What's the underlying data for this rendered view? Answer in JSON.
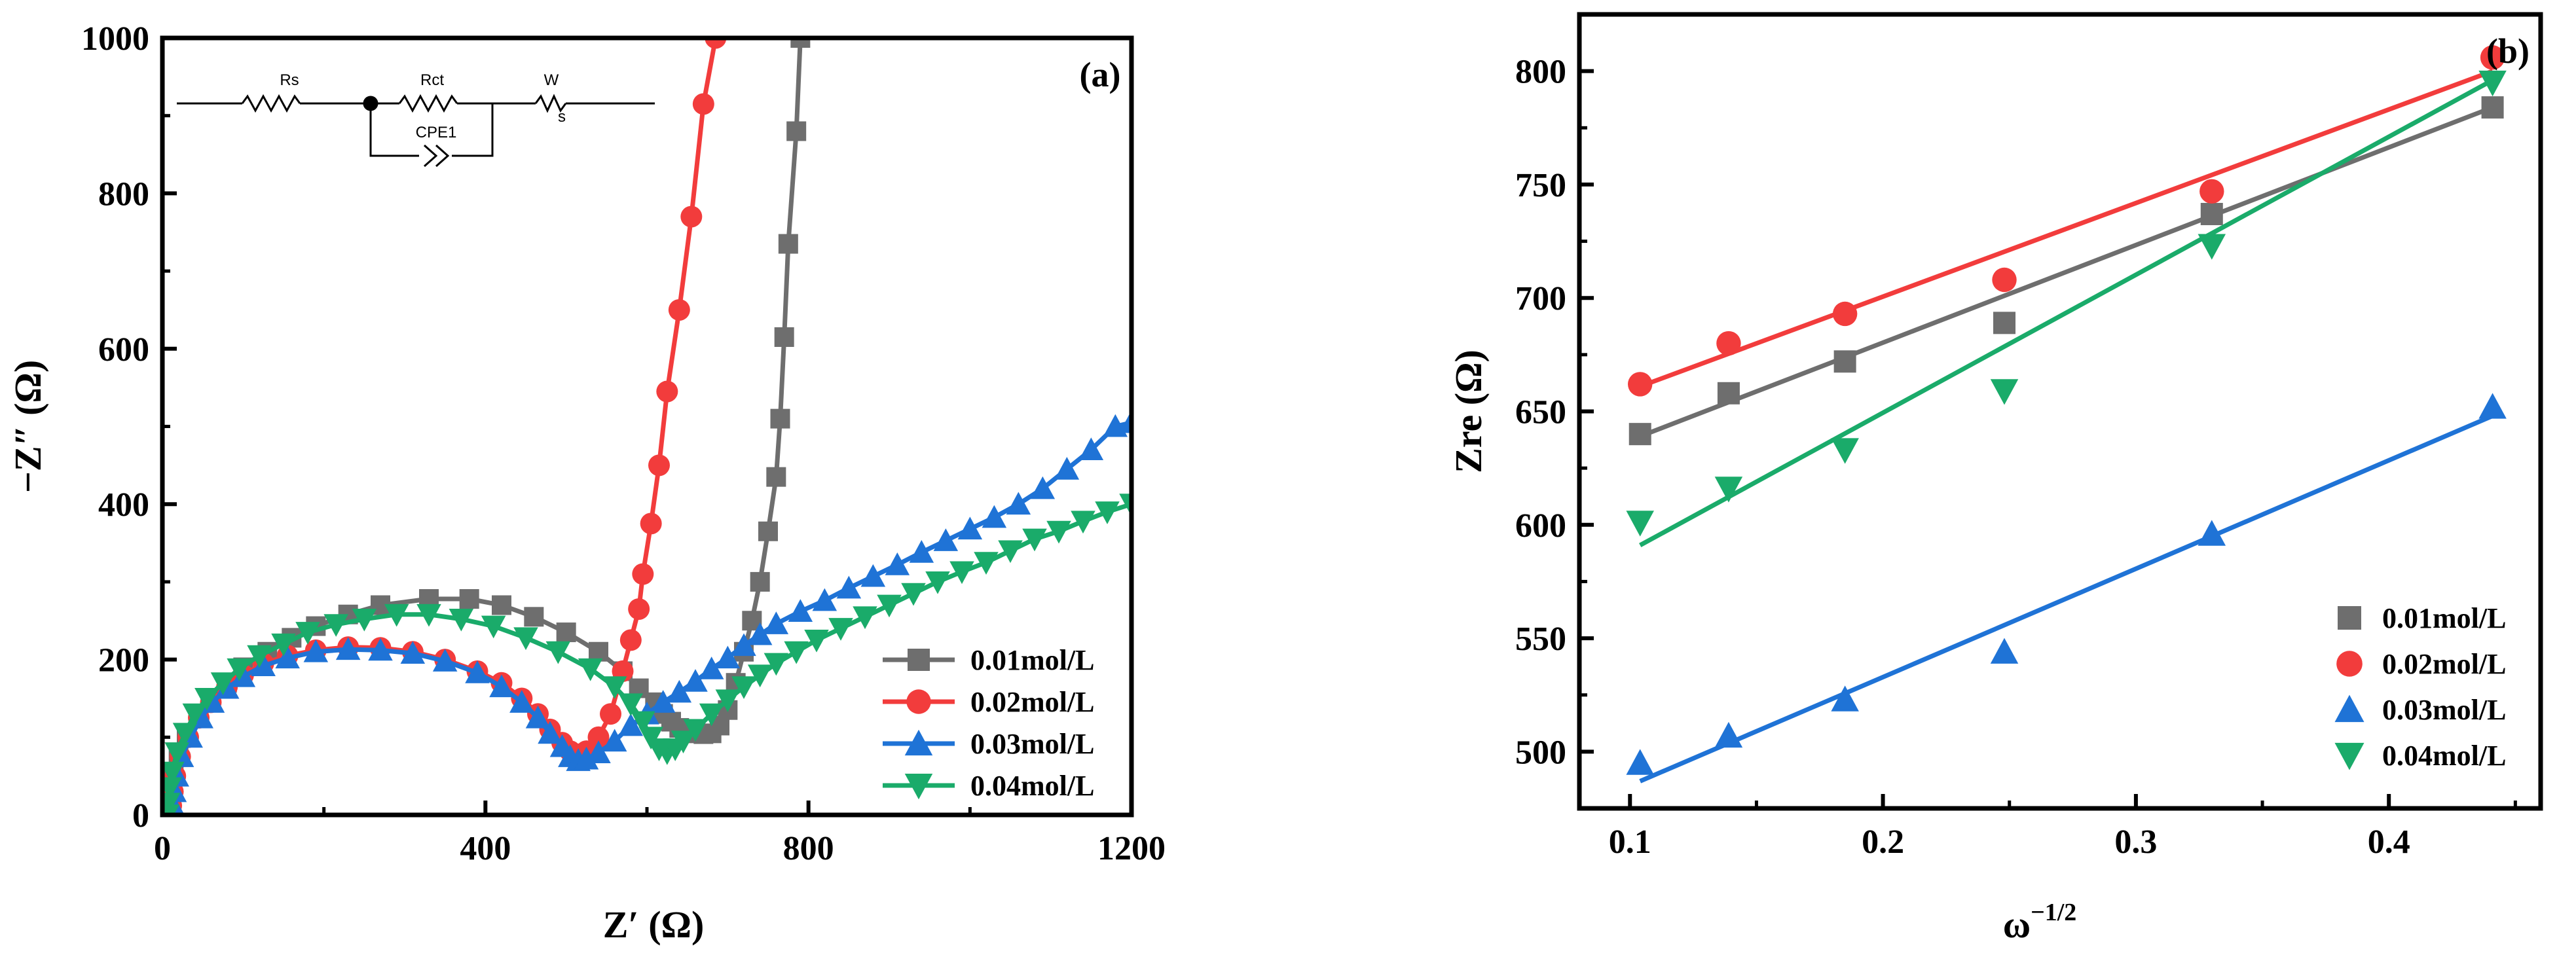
{
  "chart_data": [
    {
      "type": "scatter",
      "panel_label": "(a)",
      "xlabel": "Z′ (Ω)",
      "ylabel": "−Z″ (Ω)",
      "xlim": [
        0,
        1200
      ],
      "ylim": [
        0,
        1000
      ],
      "xticks": [
        0,
        400,
        800,
        1200
      ],
      "yticks": [
        0,
        200,
        400,
        600,
        800,
        1000
      ],
      "grid": false,
      "legend_position": "bottom-right",
      "inset_circuit": {
        "labels": [
          "Rs",
          "Rct",
          "W",
          "CPE1"
        ],
        "subscript": "s"
      },
      "series": [
        {
          "name": "0.01mol/L",
          "color": "#6e6e6e",
          "marker": "square",
          "points": [
            [
              8,
              0
            ],
            [
              9,
              15
            ],
            [
              11,
              35
            ],
            [
              14,
              55
            ],
            [
              20,
              80
            ],
            [
              30,
              105
            ],
            [
              45,
              130
            ],
            [
              60,
              150
            ],
            [
              80,
              170
            ],
            [
              100,
              190
            ],
            [
              130,
              210
            ],
            [
              160,
              228
            ],
            [
              190,
              243
            ],
            [
              230,
              258
            ],
            [
              270,
              270
            ],
            [
              330,
              278
            ],
            [
              380,
              278
            ],
            [
              420,
              270
            ],
            [
              460,
              255
            ],
            [
              500,
              235
            ],
            [
              540,
              210
            ],
            [
              570,
              185
            ],
            [
              590,
              163
            ],
            [
              610,
              145
            ],
            [
              620,
              130
            ],
            [
              630,
              120
            ],
            [
              640,
              112
            ],
            [
              650,
              108
            ],
            [
              660,
              105
            ],
            [
              670,
              104
            ],
            [
              680,
              105
            ],
            [
              690,
              115
            ],
            [
              700,
              135
            ],
            [
              710,
              170
            ],
            [
              720,
              210
            ],
            [
              730,
              250
            ],
            [
              740,
              300
            ],
            [
              750,
              365
            ],
            [
              760,
              435
            ],
            [
              765,
              510
            ],
            [
              770,
              615
            ],
            [
              775,
              735
            ],
            [
              785,
              880
            ],
            [
              790,
              1000
            ]
          ]
        },
        {
          "name": "0.02mol/L",
          "color": "#f23c3c",
          "marker": "circle",
          "points": [
            [
              10,
              0
            ],
            [
              11,
              12
            ],
            [
              13,
              30
            ],
            [
              16,
              50
            ],
            [
              22,
              75
            ],
            [
              32,
              100
            ],
            [
              45,
              125
            ],
            [
              60,
              145
            ],
            [
              80,
              165
            ],
            [
              100,
              180
            ],
            [
              125,
              195
            ],
            [
              155,
              205
            ],
            [
              190,
              212
            ],
            [
              230,
              216
            ],
            [
              270,
              215
            ],
            [
              310,
              210
            ],
            [
              350,
              200
            ],
            [
              390,
              185
            ],
            [
              420,
              170
            ],
            [
              445,
              150
            ],
            [
              465,
              130
            ],
            [
              480,
              110
            ],
            [
              495,
              93
            ],
            [
              505,
              82
            ],
            [
              515,
              78
            ],
            [
              525,
              82
            ],
            [
              540,
              100
            ],
            [
              555,
              130
            ],
            [
              570,
              185
            ],
            [
              580,
              225
            ],
            [
              590,
              265
            ],
            [
              595,
              310
            ],
            [
              605,
              375
            ],
            [
              615,
              450
            ],
            [
              625,
              545
            ],
            [
              640,
              650
            ],
            [
              655,
              770
            ],
            [
              670,
              915
            ],
            [
              685,
              1000
            ]
          ]
        },
        {
          "name": "0.03mol/L",
          "color": "#1f73d6",
          "marker": "triangle-up",
          "points": [
            [
              12,
              0
            ],
            [
              13,
              12
            ],
            [
              15,
              30
            ],
            [
              18,
              50
            ],
            [
              24,
              75
            ],
            [
              35,
              100
            ],
            [
              48,
              125
            ],
            [
              62,
              145
            ],
            [
              80,
              163
            ],
            [
              100,
              178
            ],
            [
              125,
              192
            ],
            [
              155,
              202
            ],
            [
              190,
              210
            ],
            [
              230,
              213
            ],
            [
              270,
              212
            ],
            [
              310,
              208
            ],
            [
              350,
              198
            ],
            [
              390,
              183
            ],
            [
              420,
              165
            ],
            [
              445,
              145
            ],
            [
              465,
              125
            ],
            [
              480,
              105
            ],
            [
              495,
              88
            ],
            [
              505,
              75
            ],
            [
              515,
              70
            ],
            [
              525,
              72
            ],
            [
              540,
              80
            ],
            [
              560,
              95
            ],
            [
              580,
              115
            ],
            [
              600,
              130
            ],
            [
              620,
              145
            ],
            [
              640,
              158
            ],
            [
              660,
              172
            ],
            [
              680,
              188
            ],
            [
              700,
              202
            ],
            [
              720,
              218
            ],
            [
              740,
              232
            ],
            [
              760,
              246
            ],
            [
              790,
              262
            ],
            [
              820,
              276
            ],
            [
              850,
              292
            ],
            [
              880,
              307
            ],
            [
              910,
              322
            ],
            [
              940,
              338
            ],
            [
              970,
              353
            ],
            [
              1000,
              368
            ],
            [
              1030,
              383
            ],
            [
              1060,
              400
            ],
            [
              1090,
              420
            ],
            [
              1120,
              445
            ],
            [
              1150,
              470
            ],
            [
              1180,
              500
            ],
            [
              1200,
              505
            ]
          ]
        },
        {
          "name": "0.04mol/L",
          "color": "#1aab6a",
          "marker": "triangle-down",
          "points": [
            [
              6,
              0
            ],
            [
              7,
              15
            ],
            [
              9,
              35
            ],
            [
              12,
              55
            ],
            [
              18,
              80
            ],
            [
              28,
              105
            ],
            [
              40,
              130
            ],
            [
              55,
              150
            ],
            [
              75,
              170
            ],
            [
              95,
              188
            ],
            [
              120,
              205
            ],
            [
              150,
              220
            ],
            [
              180,
              235
            ],
            [
              215,
              245
            ],
            [
              250,
              252
            ],
            [
              290,
              258
            ],
            [
              330,
              258
            ],
            [
              370,
              252
            ],
            [
              410,
              243
            ],
            [
              450,
              228
            ],
            [
              490,
              210
            ],
            [
              530,
              188
            ],
            [
              560,
              165
            ],
            [
              580,
              143
            ],
            [
              595,
              120
            ],
            [
              605,
              100
            ],
            [
              615,
              85
            ],
            [
              625,
              80
            ],
            [
              635,
              85
            ],
            [
              645,
              95
            ],
            [
              660,
              110
            ],
            [
              680,
              130
            ],
            [
              700,
              148
            ],
            [
              720,
              165
            ],
            [
              740,
              180
            ],
            [
              760,
              195
            ],
            [
              785,
              210
            ],
            [
              810,
              225
            ],
            [
              840,
              240
            ],
            [
              870,
              255
            ],
            [
              900,
              270
            ],
            [
              930,
              285
            ],
            [
              960,
              300
            ],
            [
              990,
              313
            ],
            [
              1020,
              325
            ],
            [
              1050,
              340
            ],
            [
              1080,
              355
            ],
            [
              1110,
              365
            ],
            [
              1140,
              378
            ],
            [
              1170,
              390
            ],
            [
              1200,
              400
            ]
          ]
        }
      ]
    },
    {
      "type": "scatter",
      "panel_label": "(b)",
      "xlabel": "ω",
      "xlabel_sup": "−1/2",
      "ylabel": "Zre (Ω)",
      "xlim": [
        0.08,
        0.46
      ],
      "ylim": [
        475,
        825
      ],
      "xticks": [
        0.1,
        0.2,
        0.3,
        0.4
      ],
      "yticks": [
        500,
        550,
        600,
        650,
        700,
        750,
        800
      ],
      "grid": false,
      "legend_position": "bottom-right",
      "x": [
        0.104,
        0.139,
        0.185,
        0.248,
        0.33,
        0.441
      ],
      "series": [
        {
          "name": "0.01mol/L",
          "color": "#6e6e6e",
          "marker": "square",
          "values": [
            640,
            658,
            672,
            689,
            737,
            784
          ],
          "fit": [
            0.104,
            639,
            0.441,
            784
          ]
        },
        {
          "name": "0.02mol/L",
          "color": "#f23c3c",
          "marker": "circle",
          "values": [
            662,
            680,
            693,
            708,
            747,
            806
          ],
          "fit": [
            0.104,
            661,
            0.441,
            800
          ]
        },
        {
          "name": "0.03mol/L",
          "color": "#1f73d6",
          "marker": "triangle-up",
          "values": [
            495,
            507,
            523,
            544,
            596,
            652
          ],
          "fit": [
            0.104,
            487,
            0.441,
            648
          ]
        },
        {
          "name": "0.04mol/L",
          "color": "#1aab6a",
          "marker": "triangle-down",
          "values": [
            601,
            616,
            633,
            659,
            723,
            795
          ],
          "fit": [
            0.104,
            591,
            0.441,
            796
          ]
        }
      ]
    }
  ]
}
